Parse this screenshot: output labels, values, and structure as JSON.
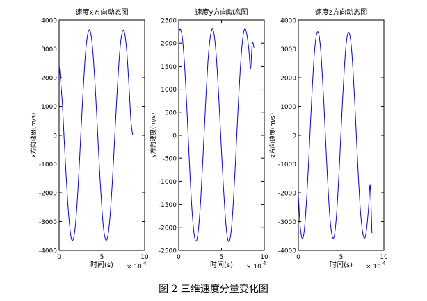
{
  "chart_data": [
    {
      "type": "line",
      "title": "速度x方向动态图",
      "xlabel": "时间(s)",
      "ylabel": "x方向速度(m/s)",
      "xlim": [
        0,
        10
      ],
      "ylim": [
        -4000,
        4000
      ],
      "x_ticks": [
        "0",
        "5",
        "10"
      ],
      "y_ticks": [
        "-4000",
        "-3000",
        "-2000",
        "-1000",
        "0",
        "1000",
        "2000",
        "3000",
        "4000"
      ],
      "x_exponent": "× 10",
      "x_exponent_power": "4",
      "series": [
        {
          "color": "#0000ff",
          "x": [
            0,
            0.2,
            0.4,
            0.6,
            0.8,
            1.0,
            1.2,
            1.4,
            1.6,
            1.8,
            2.0,
            2.2,
            2.4,
            2.6,
            2.8,
            3.0,
            3.2,
            3.4,
            3.6,
            3.8,
            4.0,
            4.2,
            4.4,
            4.6,
            4.8,
            5.0,
            5.2,
            5.4,
            5.6,
            5.8,
            6.0,
            6.2,
            6.4,
            6.6,
            6.8,
            7.0,
            7.2,
            7.4,
            7.6,
            7.8,
            8.0,
            8.2,
            8.4,
            8.6
          ],
          "y": [
            2450,
            1800,
            1000,
            -200,
            -1300,
            -2300,
            -3050,
            -3550,
            -3650,
            -3400,
            -2800,
            -1900,
            -800,
            400,
            1500,
            2500,
            3200,
            3580,
            3650,
            3350,
            2700,
            1800,
            700,
            -500,
            -1600,
            -2550,
            -3250,
            -3600,
            -3620,
            -3300,
            -2650,
            -1750,
            -650,
            500,
            1600,
            2550,
            3250,
            3600,
            3620,
            3250,
            2550,
            1550,
            500,
            0
          ]
        }
      ]
    },
    {
      "type": "line",
      "title": "速度y方向动态图",
      "xlabel": "时间(s)",
      "ylabel": "y方向速度(m/s)",
      "xlim": [
        0,
        10
      ],
      "ylim": [
        -2500,
        2500
      ],
      "x_ticks": [
        "0",
        "5",
        "10"
      ],
      "y_ticks": [
        "-2500",
        "-2000",
        "-1500",
        "-1000",
        "-500",
        "0",
        "500",
        "1000",
        "1500",
        "2000",
        "2500"
      ],
      "x_exponent": "× 10",
      "x_exponent_power": "4",
      "series": [
        {
          "color": "#0000ff",
          "x": [
            0,
            0.2,
            0.4,
            0.6,
            0.8,
            1.0,
            1.2,
            1.4,
            1.6,
            1.8,
            2.0,
            2.2,
            2.4,
            2.6,
            2.8,
            3.0,
            3.2,
            3.4,
            3.6,
            3.8,
            4.0,
            4.2,
            4.4,
            4.6,
            4.8,
            5.0,
            5.2,
            5.4,
            5.6,
            5.8,
            6.0,
            6.2,
            6.4,
            6.6,
            6.8,
            7.0,
            7.2,
            7.4,
            7.6,
            7.8,
            8.0,
            8.2,
            8.4,
            8.6,
            8.8
          ],
          "y": [
            2250,
            2300,
            2150,
            1750,
            1150,
            400,
            -400,
            -1150,
            -1750,
            -2150,
            -2300,
            -2200,
            -1850,
            -1300,
            -600,
            150,
            900,
            1550,
            2000,
            2250,
            2300,
            2100,
            1700,
            1100,
            400,
            -350,
            -1050,
            -1650,
            -2100,
            -2300,
            -2250,
            -1950,
            -1400,
            -700,
            50,
            800,
            1450,
            1950,
            2250,
            2300,
            2150,
            1850,
            1450,
            2000,
            1900
          ]
        }
      ]
    },
    {
      "type": "line",
      "title": "速度z方向动态图",
      "xlabel": "时间(s)",
      "ylabel": "z方向速度(m/s)",
      "xlim": [
        0,
        10
      ],
      "ylim": [
        -4000,
        4000
      ],
      "x_ticks": [
        "0",
        "5",
        "10"
      ],
      "y_ticks": [
        "-4000",
        "-3000",
        "-2000",
        "-1000",
        "0",
        "1000",
        "2000",
        "3000",
        "4000"
      ],
      "x_exponent": "× 10",
      "x_exponent_power": "4",
      "series": [
        {
          "color": "#0000ff",
          "x": [
            0,
            0.2,
            0.4,
            0.6,
            0.8,
            1.0,
            1.2,
            1.4,
            1.6,
            1.8,
            2.0,
            2.2,
            2.4,
            2.6,
            2.8,
            3.0,
            3.2,
            3.4,
            3.6,
            3.8,
            4.0,
            4.2,
            4.4,
            4.6,
            4.8,
            5.0,
            5.2,
            5.4,
            5.6,
            5.8,
            6.0,
            6.2,
            6.4,
            6.6,
            6.8,
            7.0,
            7.2,
            7.4,
            7.6,
            7.8,
            8.0,
            8.2,
            8.4,
            8.6
          ],
          "y": [
            -2100,
            -3100,
            -3550,
            -3500,
            -2950,
            -2050,
            -950,
            300,
            1500,
            2550,
            3250,
            3580,
            3500,
            3000,
            2100,
            1000,
            -250,
            -1450,
            -2500,
            -3200,
            -3550,
            -3500,
            -3000,
            -2150,
            -1050,
            200,
            1400,
            2450,
            3200,
            3550,
            3500,
            3050,
            2200,
            1100,
            -150,
            -1350,
            -2400,
            -3100,
            -3500,
            -3550,
            -3200,
            -2550,
            -1750,
            -3400
          ]
        }
      ]
    }
  ],
  "caption": "图 2  三维速度分量变化图"
}
